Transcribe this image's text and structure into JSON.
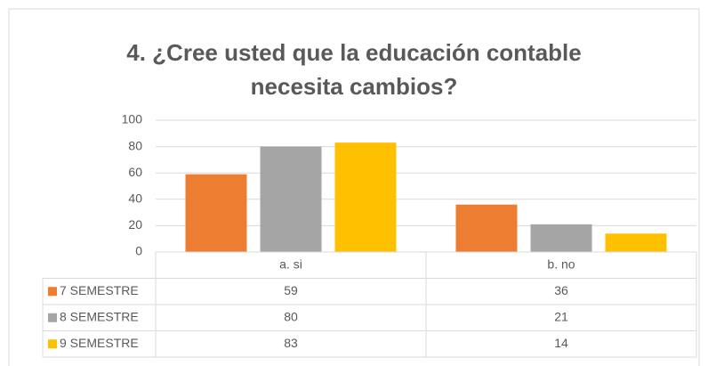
{
  "chart_data": {
    "type": "bar",
    "title": "4. ¿Cree usted que la educación contable necesita cambios?",
    "categories": [
      "a. si",
      "b. no"
    ],
    "series": [
      {
        "name": "7 SEMESTRE",
        "color": "#ED7D31",
        "values": [
          59,
          36
        ]
      },
      {
        "name": "8 SEMESTRE",
        "color": "#A5A5A5",
        "values": [
          80,
          21
        ]
      },
      {
        "name": "9 SEMESTRE",
        "color": "#FFC000",
        "values": [
          83,
          14
        ]
      }
    ],
    "ylim": [
      0,
      100
    ],
    "yticks": [
      0,
      20,
      40,
      60,
      80,
      100
    ],
    "grid": true,
    "data_table": true
  }
}
